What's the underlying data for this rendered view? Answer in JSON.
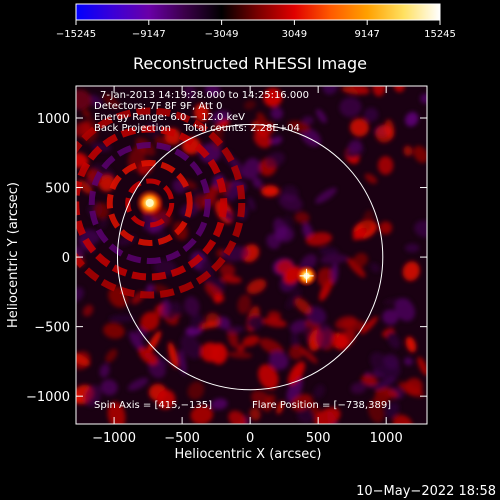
{
  "colorbar": {
    "ticks": [
      -15245,
      -9147,
      -3049,
      3049,
      9147,
      15245
    ],
    "tick_labels": [
      "−15245",
      "−9147",
      "−3049",
      "3049",
      "9147",
      "15245"
    ],
    "range": [
      -15245,
      15245
    ],
    "stops": [
      "#0000ff",
      "#3a00d8",
      "#6a00a8",
      "#3a0048",
      "#000000",
      "#7a0000",
      "#e00000",
      "#ff5a00",
      "#ffa000",
      "#ffe060",
      "#ffffff"
    ]
  },
  "chart_data": {
    "type": "heatmap",
    "title": "Reconstructed RHESSI Image",
    "xlabel": "Heliocentric X (arcsec)",
    "ylabel": "Heliocentric Y (arcsec)",
    "xlim": [
      -1280,
      1300
    ],
    "ylim": [
      -1200,
      1230
    ],
    "xticks": [
      -1000,
      -500,
      0,
      500,
      1000
    ],
    "yticks": [
      -1000,
      -500,
      0,
      500,
      1000
    ],
    "xtick_labels": [
      "−1000",
      "−500",
      "0",
      "500",
      "1000"
    ],
    "ytick_labels": [
      "−1000",
      "−500",
      "0",
      "500",
      "1000"
    ],
    "solar_limb_radius_arcsec": 975,
    "sources": [
      {
        "x": -738,
        "y": 389,
        "peak": "brightest"
      },
      {
        "x": 415,
        "y": -135,
        "peak": "secondary"
      }
    ],
    "spin_axis": [
      415,
      -135
    ],
    "flare_position": [
      -738,
      389
    ],
    "info_lines": [
      "7-Jan-2013 14:19:28.000 to 14:25:16.000",
      "Detectors: 7F 8F 9F, Att 0",
      "Energy Range: 6.0 − 12.0 keV",
      "Back Projection    Total counts: 2.28E+04"
    ],
    "spin_axis_label": "Spin Axis = [415,−135]",
    "flare_position_label": "Flare Position = [−738,389]"
  },
  "footer": {
    "date": "10−May−2022 18:58"
  }
}
